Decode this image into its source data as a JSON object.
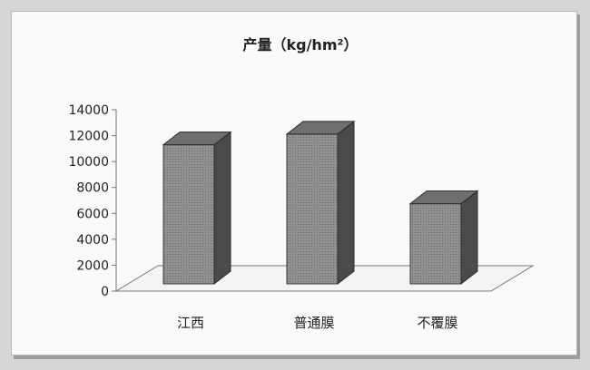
{
  "chart_data": {
    "type": "bar",
    "title": "产量（kg/hm²）",
    "categories": [
      "江西",
      "普通膜",
      "不覆膜"
    ],
    "values": [
      11800,
      12700,
      6800
    ],
    "ylim": [
      0,
      14000
    ],
    "yticks": [
      0,
      2000,
      4000,
      6000,
      8000,
      10000,
      12000,
      14000
    ],
    "xlabel": "",
    "ylabel": "",
    "grid": false,
    "legend": "none",
    "colors": {
      "front": "#8e8e8e",
      "side": "#4a4a4a",
      "top": "#6f6f6f",
      "floor": "#f4f4f4",
      "axis": "#777777"
    }
  }
}
